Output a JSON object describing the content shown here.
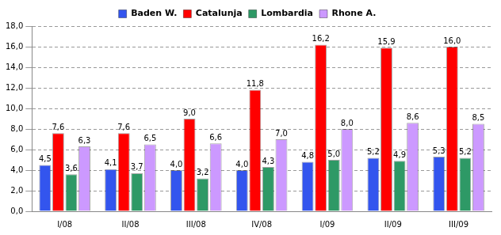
{
  "chart_data": {
    "type": "bar",
    "categories": [
      "I/08",
      "II/08",
      "III/08",
      "IV/08",
      "I/09",
      "II/09",
      "III/09"
    ],
    "series": [
      {
        "name": "Baden W.",
        "color": "#3355ee",
        "values": [
          4.5,
          4.1,
          4.0,
          4.0,
          4.8,
          5.2,
          5.3
        ],
        "value_labels": [
          "4,5",
          "4,1",
          "4,0",
          "4,0",
          "4,8",
          "5,2",
          "5,3"
        ]
      },
      {
        "name": "Catalunja",
        "color": "#ff0000",
        "values": [
          7.6,
          7.6,
          9.0,
          11.8,
          16.2,
          15.9,
          16.0
        ],
        "value_labels": [
          "7,6",
          "7,6",
          "9,0",
          "11,8",
          "16,2",
          "15,9",
          "16,0"
        ]
      },
      {
        "name": "Lombardia",
        "color": "#2e9966",
        "values": [
          3.6,
          3.7,
          3.2,
          4.3,
          5.0,
          4.9,
          5.2
        ],
        "value_labels": [
          "3,6",
          "3,7",
          "3,2",
          "4,3",
          "5,0",
          "4,9",
          "5,2"
        ]
      },
      {
        "name": "Rhone A.",
        "color": "#cc99ff",
        "values": [
          6.3,
          6.5,
          6.6,
          7.0,
          8.0,
          8.6,
          8.5
        ],
        "value_labels": [
          "6,3",
          "6,5",
          "6,6",
          "7,0",
          "8,0",
          "8,6",
          "8,5"
        ]
      }
    ],
    "ylim": [
      0,
      18
    ],
    "yticks": [
      {
        "value": 0,
        "label": "0,0"
      },
      {
        "value": 2,
        "label": "2,0"
      },
      {
        "value": 4,
        "label": "4,0"
      },
      {
        "value": 6,
        "label": "6,0"
      },
      {
        "value": 8,
        "label": "8,0"
      },
      {
        "value": 10,
        "label": "10,0"
      },
      {
        "value": 12,
        "label": "12,0"
      },
      {
        "value": 14,
        "label": "14,0"
      },
      {
        "value": 16,
        "label": "16,0"
      },
      {
        "value": 18,
        "label": "18,0"
      }
    ],
    "grid": true,
    "legend": "top",
    "data_labels": true
  }
}
